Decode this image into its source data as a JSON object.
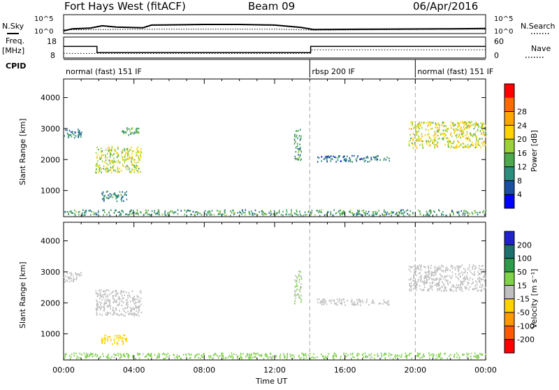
{
  "header": {
    "station": "Fort Hays West (fitACF)",
    "beam": "Beam 09",
    "date": "06/Apr/2016"
  },
  "left_labels": {
    "nsky": "N.Sky",
    "freq": "Freq.",
    "freq_unit": "[MHz]",
    "cpid": "CPID"
  },
  "right_labels": {
    "nsearch": "N.Search",
    "nave": "Nave"
  },
  "noise_axis": {
    "left_ticks": [
      "10^5",
      "10^0"
    ],
    "right_ticks": [
      "10^5",
      "10^0"
    ]
  },
  "freq_axis": {
    "left_ticks": [
      "18",
      "8"
    ],
    "right_ticks": [
      "60",
      "0"
    ]
  },
  "cpid_segments": [
    {
      "label": "normal (fast) 151 IF",
      "start_hour": 0,
      "end_hour": 14
    },
    {
      "label": "rbsp 200 IF",
      "start_hour": 14,
      "end_hour": 20
    },
    {
      "label": "normal (fast) 151 IF",
      "start_hour": 20,
      "end_hour": 24
    }
  ],
  "time_axis": {
    "label": "Time UT",
    "ticks": [
      "00:00",
      "04:00",
      "08:00",
      "12:00",
      "16:00",
      "20:00",
      "00:00"
    ]
  },
  "range_axis": {
    "label": "Slant Range [km]",
    "ticks": [
      "1000",
      "2000",
      "3000",
      "4000"
    ]
  },
  "power_colorbar": {
    "label": "Power [dB]",
    "ticks": [
      "4",
      "8",
      "12",
      "16",
      "20",
      "24",
      "28"
    ],
    "colors": [
      "#0000ff",
      "#1c4fa0",
      "#2f8c7e",
      "#4ea84e",
      "#9bd23a",
      "#ffd200",
      "#ffa500",
      "#ff6a00",
      "#ff0000"
    ]
  },
  "velocity_colorbar": {
    "label": "Velocity [m s⁻¹]",
    "ticks": [
      "200",
      "100",
      "50",
      "15",
      "-15",
      "-50",
      "-100",
      "-200"
    ],
    "colors": [
      "#2222cc",
      "#1f6f6f",
      "#2e9a4a",
      "#7fd24a",
      "#bfbfbf",
      "#ffd200",
      "#ff9900",
      "#ff5a00",
      "#ff0000"
    ]
  },
  "chart_data": {
    "type": "heatmap",
    "title": "Fort Hays West (fitACF)",
    "beam": "Beam 09",
    "date": "06/Apr/2016",
    "xlabel": "Time UT",
    "ylabel": "Slant Range [km]",
    "xlim_hours": [
      0,
      24
    ],
    "ylim_km": [
      180,
      4600
    ],
    "noise_panel": {
      "nsky_log10": [
        {
          "x": 0,
          "y": 0.4
        },
        {
          "x": 0.5,
          "y": 1.0
        },
        {
          "x": 1.5,
          "y": 1.2
        },
        {
          "x": 2.2,
          "y": 1.9
        },
        {
          "x": 3.0,
          "y": 1.5
        },
        {
          "x": 4.5,
          "y": 1.3
        },
        {
          "x": 5.0,
          "y": 2.1
        },
        {
          "x": 8,
          "y": 2.3
        },
        {
          "x": 10,
          "y": 2.3
        },
        {
          "x": 12,
          "y": 2.1
        },
        {
          "x": 13.5,
          "y": 1.4
        },
        {
          "x": 14.2,
          "y": 0.8
        },
        {
          "x": 18,
          "y": 0.9
        },
        {
          "x": 22,
          "y": 1.0
        },
        {
          "x": 24,
          "y": 1.1
        }
      ],
      "nsearch_log10": [
        {
          "x": 0,
          "y": 0.7
        },
        {
          "x": 6,
          "y": 0.9
        },
        {
          "x": 12,
          "y": 0.9
        },
        {
          "x": 14.2,
          "y": 0.6
        },
        {
          "x": 20,
          "y": 0.8
        },
        {
          "x": 24,
          "y": 0.9
        }
      ]
    },
    "freq_panel": {
      "freq_mhz": [
        {
          "x": 0,
          "y": 14.5
        },
        {
          "x": 1.9,
          "y": 14.5
        },
        {
          "x": 1.9,
          "y": 10.8
        },
        {
          "x": 14.05,
          "y": 10.8
        },
        {
          "x": 14.05,
          "y": 14.5
        },
        {
          "x": 24,
          "y": 14.5
        }
      ],
      "nave": [
        {
          "x": 0,
          "y": 14
        },
        {
          "x": 14.05,
          "y": 14
        },
        {
          "x": 14.05,
          "y": 27
        },
        {
          "x": 24,
          "y": 27
        }
      ]
    },
    "power_panel": {
      "quantity": "Power [dB]",
      "clim": [
        0,
        32
      ],
      "echo_regions": [
        {
          "t0": 0.0,
          "t1": 1.0,
          "r0": 2700,
          "r1": 3000,
          "dB": 7
        },
        {
          "t0": 1.8,
          "t1": 4.4,
          "r0": 1600,
          "r1": 2450,
          "dB": 17
        },
        {
          "t0": 2.1,
          "t1": 3.6,
          "r0": 680,
          "r1": 1000,
          "dB": 8
        },
        {
          "t0": 3.3,
          "t1": 4.3,
          "r0": 2800,
          "r1": 3050,
          "dB": 12
        },
        {
          "t0": 13.1,
          "t1": 13.5,
          "r0": 2000,
          "r1": 3050,
          "dB": 10
        },
        {
          "t0": 14.4,
          "t1": 18.5,
          "r0": 1950,
          "r1": 2150,
          "dB": 6
        },
        {
          "t0": 19.6,
          "t1": 24.0,
          "r0": 2400,
          "r1": 3250,
          "dB": 18
        },
        {
          "t0": 0.0,
          "t1": 24.0,
          "r0": 220,
          "r1": 400,
          "dB": 10
        }
      ]
    },
    "velocity_panel": {
      "quantity": "Velocity [m s⁻¹]",
      "clim": [
        -200,
        200
      ],
      "echo_regions": [
        {
          "t0": 0.0,
          "t1": 1.0,
          "r0": 2700,
          "r1": 3000,
          "v": 0
        },
        {
          "t0": 1.8,
          "t1": 4.4,
          "r0": 1600,
          "r1": 2450,
          "v": 0
        },
        {
          "t0": 2.1,
          "t1": 3.6,
          "r0": 680,
          "r1": 1000,
          "v": -50
        },
        {
          "t0": 13.1,
          "t1": 13.5,
          "r0": 2000,
          "r1": 3050,
          "v": 30
        },
        {
          "t0": 14.4,
          "t1": 18.5,
          "r0": 1950,
          "r1": 2150,
          "v": 0
        },
        {
          "t0": 19.6,
          "t1": 24.0,
          "r0": 2400,
          "r1": 3250,
          "v": 0
        },
        {
          "t0": 0.0,
          "t1": 24.0,
          "r0": 220,
          "r1": 400,
          "v": 40
        }
      ]
    }
  }
}
